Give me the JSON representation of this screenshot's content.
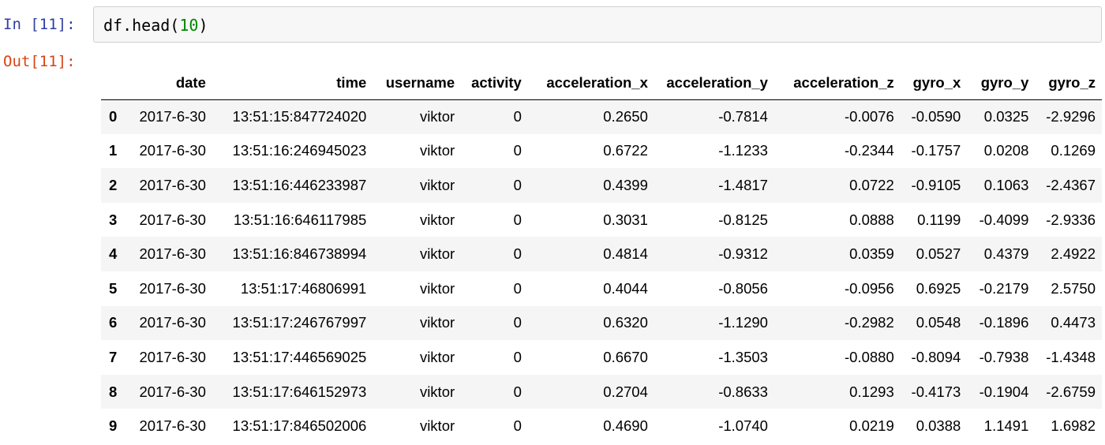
{
  "notebook": {
    "in_prompt": "In [11]:",
    "out_prompt": "Out[11]:",
    "code": {
      "fn": "df.head",
      "open": "(",
      "arg": "10",
      "close": ")"
    }
  },
  "table": {
    "columns": [
      "",
      "date",
      "time",
      "username",
      "activity",
      "acceleration_x",
      "acceleration_y",
      "acceleration_z",
      "gyro_x",
      "gyro_y",
      "gyro_z"
    ],
    "rows": [
      [
        "0",
        "2017-6-30",
        "13:51:15:847724020",
        "viktor",
        "0",
        "0.2650",
        "-0.7814",
        "-0.0076",
        "-0.0590",
        "0.0325",
        "-2.9296"
      ],
      [
        "1",
        "2017-6-30",
        "13:51:16:246945023",
        "viktor",
        "0",
        "0.6722",
        "-1.1233",
        "-0.2344",
        "-0.1757",
        "0.0208",
        "0.1269"
      ],
      [
        "2",
        "2017-6-30",
        "13:51:16:446233987",
        "viktor",
        "0",
        "0.4399",
        "-1.4817",
        "0.0722",
        "-0.9105",
        "0.1063",
        "-2.4367"
      ],
      [
        "3",
        "2017-6-30",
        "13:51:16:646117985",
        "viktor",
        "0",
        "0.3031",
        "-0.8125",
        "0.0888",
        "0.1199",
        "-0.4099",
        "-2.9336"
      ],
      [
        "4",
        "2017-6-30",
        "13:51:16:846738994",
        "viktor",
        "0",
        "0.4814",
        "-0.9312",
        "0.0359",
        "0.0527",
        "0.4379",
        "2.4922"
      ],
      [
        "5",
        "2017-6-30",
        "13:51:17:46806991",
        "viktor",
        "0",
        "0.4044",
        "-0.8056",
        "-0.0956",
        "0.6925",
        "-0.2179",
        "2.5750"
      ],
      [
        "6",
        "2017-6-30",
        "13:51:17:246767997",
        "viktor",
        "0",
        "0.6320",
        "-1.1290",
        "-0.2982",
        "0.0548",
        "-0.1896",
        "0.4473"
      ],
      [
        "7",
        "2017-6-30",
        "13:51:17:446569025",
        "viktor",
        "0",
        "0.6670",
        "-1.3503",
        "-0.0880",
        "-0.8094",
        "-0.7938",
        "-1.4348"
      ],
      [
        "8",
        "2017-6-30",
        "13:51:17:646152973",
        "viktor",
        "0",
        "0.2704",
        "-0.8633",
        "0.1293",
        "-0.4173",
        "-0.1904",
        "-2.6759"
      ],
      [
        "9",
        "2017-6-30",
        "13:51:17:846502006",
        "viktor",
        "0",
        "0.4690",
        "-1.0740",
        "0.0219",
        "0.0388",
        "1.1491",
        "1.6982"
      ]
    ]
  }
}
